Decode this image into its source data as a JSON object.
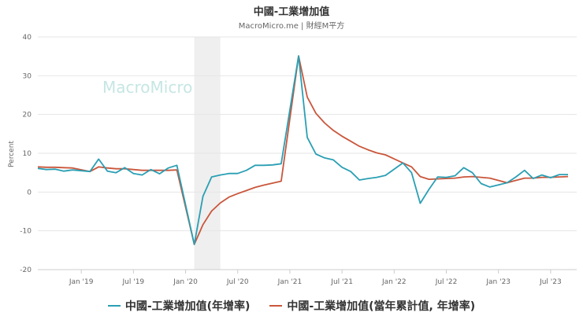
{
  "chart_data": {
    "type": "line",
    "title": "中國-工業增加值",
    "subtitle": "MacroMicro.me | 財經M平方",
    "ylabel": "Percent",
    "ylim": [
      -20,
      40
    ],
    "yticks": [
      40,
      30,
      20,
      10,
      0,
      -10,
      -20
    ],
    "xlim": [
      "2018-08",
      "2023-10"
    ],
    "xticks": [
      {
        "x": "2019-01",
        "label": "Jan '19"
      },
      {
        "x": "2019-07",
        "label": "Jul '19"
      },
      {
        "x": "2020-01",
        "label": "Jan '20"
      },
      {
        "x": "2020-07",
        "label": "Jul '20"
      },
      {
        "x": "2021-01",
        "label": "Jan '21"
      },
      {
        "x": "2021-07",
        "label": "Jul '21"
      },
      {
        "x": "2022-01",
        "label": "Jan '22"
      },
      {
        "x": "2022-07",
        "label": "Jul '22"
      },
      {
        "x": "2023-01",
        "label": "Jan '23"
      },
      {
        "x": "2023-07",
        "label": "Jul '23"
      }
    ],
    "shaded_range": [
      "2020-02",
      "2020-05"
    ],
    "watermark": "MacroMicro",
    "grid": true,
    "legend_position": "bottom",
    "series": [
      {
        "name": "中國-工業增加值(年增率)",
        "color": "#2a9fb4",
        "points": [
          [
            "2018-08",
            6.1
          ],
          [
            "2018-09",
            5.8
          ],
          [
            "2018-10",
            5.9
          ],
          [
            "2018-11",
            5.4
          ],
          [
            "2018-12",
            5.7
          ],
          [
            "2019-02",
            5.3
          ],
          [
            "2019-03",
            8.5
          ],
          [
            "2019-04",
            5.4
          ],
          [
            "2019-05",
            5.0
          ],
          [
            "2019-06",
            6.3
          ],
          [
            "2019-07",
            4.8
          ],
          [
            "2019-08",
            4.4
          ],
          [
            "2019-09",
            5.8
          ],
          [
            "2019-10",
            4.7
          ],
          [
            "2019-11",
            6.2
          ],
          [
            "2019-12",
            6.9
          ],
          [
            "2020-02",
            -13.5
          ],
          [
            "2020-03",
            -1.1
          ],
          [
            "2020-04",
            3.9
          ],
          [
            "2020-05",
            4.4
          ],
          [
            "2020-06",
            4.8
          ],
          [
            "2020-07",
            4.8
          ],
          [
            "2020-08",
            5.6
          ],
          [
            "2020-09",
            6.9
          ],
          [
            "2020-10",
            6.9
          ],
          [
            "2020-11",
            7.0
          ],
          [
            "2020-12",
            7.3
          ],
          [
            "2021-02",
            35.1
          ],
          [
            "2021-03",
            14.1
          ],
          [
            "2021-04",
            9.8
          ],
          [
            "2021-05",
            8.8
          ],
          [
            "2021-06",
            8.3
          ],
          [
            "2021-07",
            6.4
          ],
          [
            "2021-08",
            5.3
          ],
          [
            "2021-09",
            3.1
          ],
          [
            "2021-10",
            3.5
          ],
          [
            "2021-11",
            3.8
          ],
          [
            "2021-12",
            4.3
          ],
          [
            "2022-02",
            7.5
          ],
          [
            "2022-03",
            5.0
          ],
          [
            "2022-04",
            -2.9
          ],
          [
            "2022-05",
            0.7
          ],
          [
            "2022-06",
            3.9
          ],
          [
            "2022-07",
            3.8
          ],
          [
            "2022-08",
            4.2
          ],
          [
            "2022-09",
            6.3
          ],
          [
            "2022-10",
            5.0
          ],
          [
            "2022-11",
            2.2
          ],
          [
            "2022-12",
            1.3
          ],
          [
            "2023-02",
            2.4
          ],
          [
            "2023-03",
            3.9
          ],
          [
            "2023-04",
            5.6
          ],
          [
            "2023-05",
            3.5
          ],
          [
            "2023-06",
            4.4
          ],
          [
            "2023-07",
            3.7
          ],
          [
            "2023-08",
            4.5
          ],
          [
            "2023-09",
            4.5
          ]
        ]
      },
      {
        "name": "中國-工業增加值(當年累計值, 年增率)",
        "color": "#c9563b",
        "points": [
          [
            "2018-08",
            6.5
          ],
          [
            "2018-09",
            6.4
          ],
          [
            "2018-10",
            6.4
          ],
          [
            "2018-11",
            6.3
          ],
          [
            "2018-12",
            6.2
          ],
          [
            "2019-02",
            5.3
          ],
          [
            "2019-03",
            6.5
          ],
          [
            "2019-04",
            6.2
          ],
          [
            "2019-05",
            6.0
          ],
          [
            "2019-06",
            6.0
          ],
          [
            "2019-07",
            5.8
          ],
          [
            "2019-08",
            5.6
          ],
          [
            "2019-09",
            5.6
          ],
          [
            "2019-10",
            5.6
          ],
          [
            "2019-11",
            5.6
          ],
          [
            "2019-12",
            5.7
          ],
          [
            "2020-02",
            -13.5
          ],
          [
            "2020-03",
            -8.4
          ],
          [
            "2020-04",
            -4.9
          ],
          [
            "2020-05",
            -2.8
          ],
          [
            "2020-06",
            -1.3
          ],
          [
            "2020-07",
            -0.4
          ],
          [
            "2020-08",
            0.4
          ],
          [
            "2020-09",
            1.2
          ],
          [
            "2020-10",
            1.8
          ],
          [
            "2020-11",
            2.3
          ],
          [
            "2020-12",
            2.8
          ],
          [
            "2021-02",
            35.1
          ],
          [
            "2021-03",
            24.5
          ],
          [
            "2021-04",
            20.3
          ],
          [
            "2021-05",
            17.8
          ],
          [
            "2021-06",
            15.9
          ],
          [
            "2021-07",
            14.4
          ],
          [
            "2021-08",
            13.1
          ],
          [
            "2021-09",
            11.8
          ],
          [
            "2021-10",
            10.9
          ],
          [
            "2021-11",
            10.1
          ],
          [
            "2021-12",
            9.6
          ],
          [
            "2022-02",
            7.5
          ],
          [
            "2022-03",
            6.5
          ],
          [
            "2022-04",
            4.0
          ],
          [
            "2022-05",
            3.3
          ],
          [
            "2022-06",
            3.4
          ],
          [
            "2022-07",
            3.5
          ],
          [
            "2022-08",
            3.6
          ],
          [
            "2022-09",
            3.9
          ],
          [
            "2022-10",
            4.0
          ],
          [
            "2022-11",
            3.8
          ],
          [
            "2022-12",
            3.6
          ],
          [
            "2023-02",
            2.4
          ],
          [
            "2023-03",
            3.0
          ],
          [
            "2023-04",
            3.6
          ],
          [
            "2023-05",
            3.6
          ],
          [
            "2023-06",
            3.8
          ],
          [
            "2023-07",
            3.8
          ],
          [
            "2023-08",
            3.9
          ],
          [
            "2023-09",
            4.0
          ]
        ]
      }
    ]
  }
}
